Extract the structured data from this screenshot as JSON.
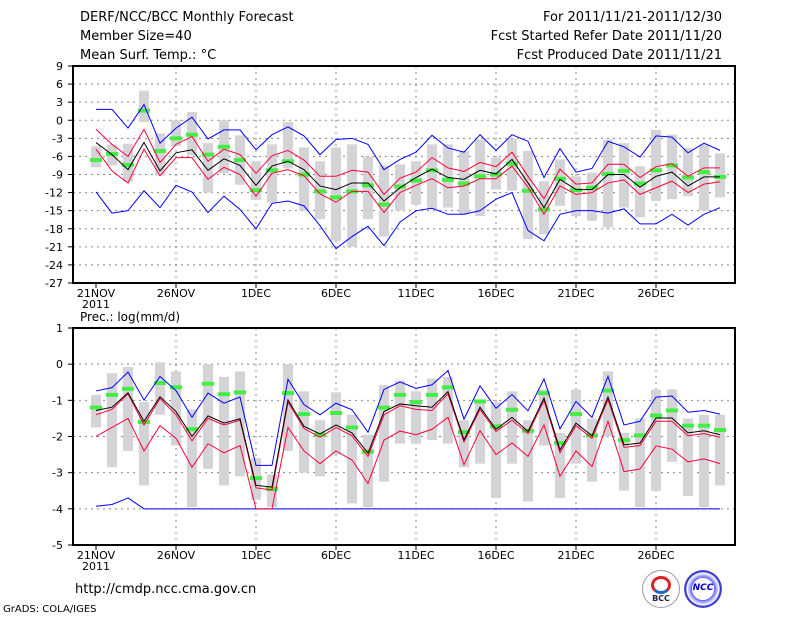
{
  "header": {
    "title": "DERF/NCC/BCC Monthly Forecast",
    "member_size": "Member Size=40",
    "variable": "Mean Surf. Temp.: °C",
    "period": "For 2011/11/21-2011/12/30",
    "start_date": "Fcst Started Refer Date 2011/11/20",
    "produced_date": "Fcst Produced Date 2011/11/21"
  },
  "footer": {
    "url": "http://cmdp.ncc.cma.gov.cn",
    "credit": "GrADS: COLA/IGES",
    "logos": [
      "BCC",
      "NCC"
    ]
  },
  "colors": {
    "ensemble_range": "#0000ff",
    "spread": "#ff0033",
    "mean": "#000000",
    "observed": "#44ee44",
    "box": "#d4d4d8"
  },
  "chart_data": [
    {
      "type": "line",
      "title": "Mean Surf. Temp.: °C",
      "ylim": [
        -27,
        9
      ],
      "yticks": [
        9,
        6,
        3,
        0,
        -3,
        -6,
        -9,
        -12,
        -15,
        -18,
        -21,
        -24,
        -27
      ],
      "xtick_labels": [
        "21NOV",
        "26NOV",
        "1DEC",
        "6DEC",
        "11DEC",
        "16DEC",
        "21DEC",
        "26DEC"
      ],
      "xtick_days": [
        0,
        5,
        10,
        15,
        20,
        25,
        30,
        35
      ],
      "year_label": "2011",
      "grid": true,
      "mean": [
        -3.7,
        -5.7,
        -8.2,
        -3.7,
        -8.4,
        -5.4,
        -4.9,
        -8.3,
        -6.4,
        -7.5,
        -10.8,
        -7.6,
        -6.8,
        -8.2,
        -10.9,
        -11.5,
        -10.4,
        -10.4,
        -13.4,
        -11.2,
        -9.5,
        -8.1,
        -9.5,
        -9.8,
        -8.3,
        -8.9,
        -6.5,
        -10.4,
        -14.5,
        -9.8,
        -11.5,
        -11.5,
        -9.0,
        -9.0,
        -11.1,
        -9.3,
        -8.6,
        -10.9,
        -9.4,
        -9.4
      ],
      "max": [
        1.8,
        1.8,
        -1.3,
        2.6,
        -3.8,
        -1.3,
        0.5,
        -3.1,
        -1.6,
        -1.6,
        -4.9,
        -2.4,
        -1.1,
        -2.6,
        -5.7,
        -3.2,
        -3.0,
        -4.0,
        -8.2,
        -6.5,
        -5.3,
        -2.5,
        -4.6,
        -5.3,
        -2.4,
        -5.0,
        -2.4,
        -3.5,
        -9.5,
        -4.7,
        -8.6,
        -8.0,
        -3.5,
        -4.4,
        -6.1,
        -2.6,
        -2.8,
        -5.4,
        -3.8,
        -5.0
      ],
      "min": [
        -11.9,
        -15.4,
        -15.0,
        -11.7,
        -14.5,
        -10.8,
        -11.9,
        -15.3,
        -12.6,
        -14.8,
        -18.0,
        -13.8,
        -13.4,
        -14.2,
        -17.5,
        -21.3,
        -19.3,
        -17.6,
        -20.8,
        -16.9,
        -15.0,
        -14.6,
        -15.6,
        -15.6,
        -15.0,
        -13.1,
        -12.0,
        -18.3,
        -20.0,
        -15.6,
        -15.0,
        -15.0,
        -15.4,
        -14.7,
        -17.2,
        -17.2,
        -15.6,
        -17.4,
        -15.6,
        -14.5
      ],
      "upper": [
        -1.5,
        -4.0,
        -6.0,
        -1.5,
        -7.0,
        -4.0,
        -2.7,
        -6.8,
        -4.8,
        -5.7,
        -8.8,
        -5.9,
        -5.0,
        -6.6,
        -9.3,
        -9.3,
        -8.3,
        -8.6,
        -12.3,
        -9.6,
        -8.6,
        -6.2,
        -7.9,
        -8.5,
        -7.0,
        -7.7,
        -5.3,
        -9.3,
        -13.0,
        -8.1,
        -10.6,
        -10.4,
        -7.3,
        -7.3,
        -9.5,
        -7.7,
        -7.2,
        -9.3,
        -7.9,
        -7.9
      ],
      "lower": [
        -4.8,
        -8.4,
        -10.4,
        -4.8,
        -9.2,
        -6.2,
        -6.2,
        -9.8,
        -7.8,
        -9.0,
        -12.6,
        -8.8,
        -8.2,
        -9.2,
        -12.2,
        -13.6,
        -11.8,
        -11.8,
        -15.3,
        -12.0,
        -10.8,
        -9.7,
        -11.2,
        -10.9,
        -9.7,
        -9.7,
        -7.6,
        -11.1,
        -15.6,
        -10.9,
        -12.3,
        -12.0,
        -10.4,
        -9.9,
        -12.3,
        -11.2,
        -10.1,
        -12.0,
        -10.6,
        -10.2
      ],
      "observed": [
        -6.6,
        -5.6,
        -7.4,
        1.6,
        -5.1,
        -3.0,
        -2.4,
        -5.7,
        -4.4,
        -6.6,
        -11.6,
        -8.3,
        -6.8,
        -9.0,
        -11.8,
        -12.8,
        -11.8,
        -10.8,
        -14.0,
        -11.0,
        -10.0,
        -8.3,
        -9.9,
        -10.5,
        -9.3,
        -9.0,
        -7.2,
        -11.7,
        -14.8,
        -9.7,
        -11.6,
        -11.2,
        -8.9,
        -8.4,
        -10.5,
        -8.3,
        -7.5,
        -9.5,
        -8.6,
        -9.4
      ],
      "box_lo": [
        -7.8,
        -7.5,
        -10.2,
        -0.3,
        -9.2,
        -4.3,
        -5.8,
        -12.0,
        -8.8,
        -10.7,
        -13.2,
        -13.7,
        -8.0,
        -15.0,
        -16.4,
        -20.0,
        -21.0,
        -16.4,
        -19.3,
        -15.0,
        -14.0,
        -14.8,
        -14.5,
        -15.6,
        -15.9,
        -11.5,
        -11.7,
        -19.7,
        -18.9,
        -14.2,
        -15.9,
        -16.7,
        -17.8,
        -14.5,
        -16.1,
        -13.4,
        -13.1,
        -12.6,
        -15.0,
        -12.8
      ],
      "box_hi": [
        -4.3,
        -4.0,
        -3.9,
        4.9,
        -2.2,
        0.0,
        1.4,
        -3.8,
        0.0,
        -2.5,
        -6.8,
        -4.0,
        -0.3,
        -4.5,
        -6.8,
        -4.5,
        -4.0,
        -6.0,
        -7.5,
        -7.3,
        -6.8,
        -4.0,
        -4.0,
        -5.1,
        -3.2,
        -6.2,
        -3.1,
        -5.1,
        -10.1,
        -6.5,
        -9.3,
        -8.7,
        -3.2,
        -3.8,
        -7.6,
        -1.6,
        -2.4,
        -4.6,
        -4.0,
        -5.5
      ]
    },
    {
      "type": "line",
      "title": "Prec.: log(mm/d)",
      "ylim": [
        -5,
        1
      ],
      "yticks": [
        1,
        0,
        -1,
        -2,
        -3,
        -4,
        -5
      ],
      "xtick_labels": [
        "21NOV",
        "26NOV",
        "1DEC",
        "6DEC",
        "11DEC",
        "16DEC",
        "21DEC",
        "26DEC"
      ],
      "xtick_days": [
        0,
        5,
        10,
        15,
        20,
        25,
        30,
        35
      ],
      "year_label": "2011",
      "grid": true,
      "mean": [
        -1.28,
        -1.19,
        -0.79,
        -1.58,
        -0.9,
        -1.31,
        -2.0,
        -1.43,
        -1.63,
        -1.51,
        -3.35,
        -3.4,
        -0.99,
        -1.72,
        -1.93,
        -1.68,
        -1.9,
        -2.46,
        -1.31,
        -1.1,
        -1.15,
        -1.19,
        -0.76,
        -2.09,
        -1.19,
        -1.8,
        -1.47,
        -1.86,
        -0.94,
        -2.37,
        -1.63,
        -1.98,
        -0.91,
        -2.23,
        -2.18,
        -1.49,
        -1.49,
        -1.9,
        -1.84,
        -1.95
      ],
      "max": [
        -0.74,
        -0.65,
        -0.22,
        -0.99,
        -0.34,
        -0.73,
        -1.47,
        -0.8,
        -1.08,
        -0.91,
        -2.8,
        -2.8,
        -0.42,
        -1.12,
        -1.4,
        -1.08,
        -1.26,
        -1.88,
        -0.7,
        -0.49,
        -0.67,
        -0.57,
        -0.18,
        -1.52,
        -0.6,
        -1.22,
        -0.84,
        -1.29,
        -0.41,
        -1.79,
        -1.03,
        -1.47,
        -0.34,
        -1.68,
        -1.58,
        -0.91,
        -0.88,
        -1.33,
        -1.28,
        -1.38
      ],
      "min": [
        -3.93,
        -3.88,
        -3.7,
        -4,
        -4,
        -4,
        -4,
        -4,
        -4,
        -4,
        -4,
        -4,
        -4,
        -4,
        -4,
        -4,
        -4,
        -4,
        -4,
        -4,
        -4,
        -4,
        -4,
        -4,
        -4,
        -4,
        -4,
        -4,
        -4,
        -4,
        -4,
        -4,
        -4,
        -4,
        -4,
        -4,
        -4,
        -4,
        -4,
        -4
      ],
      "upper": [
        -1.4,
        -1.25,
        -0.82,
        -1.68,
        -0.95,
        -1.4,
        -2.12,
        -1.5,
        -1.68,
        -1.55,
        -3.42,
        -3.48,
        -1.05,
        -1.78,
        -2.02,
        -1.75,
        -1.98,
        -2.55,
        -1.4,
        -1.15,
        -1.25,
        -1.28,
        -0.82,
        -2.15,
        -1.25,
        -1.86,
        -1.55,
        -1.92,
        -1.0,
        -2.45,
        -1.7,
        -2.05,
        -0.98,
        -2.3,
        -2.25,
        -1.58,
        -1.58,
        -1.98,
        -1.92,
        -2.02
      ],
      "lower": [
        -2.0,
        -1.75,
        -1.5,
        -2.4,
        -1.7,
        -2.05,
        -2.85,
        -2.2,
        -2.45,
        -2.25,
        -4.0,
        -4.0,
        -1.75,
        -2.4,
        -2.75,
        -2.4,
        -2.65,
        -3.3,
        -2.1,
        -1.85,
        -1.95,
        -1.8,
        -1.47,
        -2.78,
        -1.84,
        -2.5,
        -2.18,
        -2.55,
        -1.68,
        -3.1,
        -2.4,
        -2.83,
        -1.58,
        -2.97,
        -2.9,
        -2.26,
        -2.35,
        -2.7,
        -2.62,
        -2.75
      ],
      "observed": [
        -1.2,
        -0.85,
        -0.68,
        -1.6,
        -0.52,
        -0.64,
        -1.8,
        -0.54,
        -0.83,
        -0.78,
        -3.15,
        -3.45,
        -0.8,
        -1.38,
        -1.95,
        -1.35,
        -1.75,
        -2.42,
        -1.2,
        -0.85,
        -1.05,
        -0.85,
        -0.64,
        -1.88,
        -1.03,
        -1.72,
        -1.26,
        -1.84,
        -0.8,
        -2.18,
        -1.38,
        -1.97,
        -0.73,
        -2.1,
        -1.97,
        -1.42,
        -1.28,
        -1.7,
        -1.7,
        -1.82
      ],
      "box_lo": [
        -1.75,
        -2.85,
        -2.4,
        -3.35,
        -1.4,
        -2.25,
        -3.95,
        -2.9,
        -3.35,
        -3.1,
        -3.75,
        -3.95,
        -2.4,
        -3.0,
        -3.1,
        -2.5,
        -3.85,
        -3.95,
        -3.25,
        -2.2,
        -2.2,
        -2.1,
        -2.2,
        -2.85,
        -2.75,
        -3.7,
        -2.75,
        -3.8,
        -2.25,
        -3.7,
        -2.75,
        -3.25,
        -2.0,
        -3.5,
        -3.95,
        -3.5,
        -2.7,
        -3.65,
        -3.95,
        -3.35
      ],
      "box_hi": [
        -0.85,
        -0.25,
        -0.08,
        -1.05,
        0.05,
        -0.2,
        -1.25,
        0.0,
        -0.35,
        -0.2,
        -2.6,
        -3.05,
        0.0,
        -0.75,
        -1.55,
        -0.78,
        -1.4,
        -1.95,
        -0.58,
        -0.45,
        -0.75,
        -0.4,
        -0.35,
        -1.55,
        -1.0,
        -1.05,
        -0.75,
        -1.55,
        -0.7,
        -1.9,
        -0.7,
        -1.5,
        -0.2,
        -1.9,
        -1.5,
        -0.7,
        -0.7,
        -1.5,
        -1.4,
        -1.4
      ]
    }
  ]
}
